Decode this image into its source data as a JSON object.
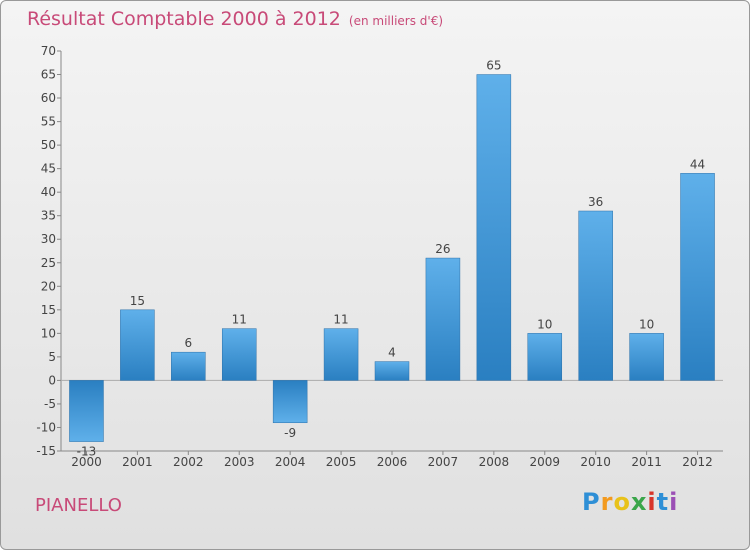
{
  "title": "Résultat Comptable 2000 à 2012",
  "unit_note": "(en milliers d'€)",
  "location": "PIANELLO",
  "brand": {
    "letters": [
      "P",
      "r",
      "o",
      "x",
      "i",
      "t",
      "i"
    ],
    "colors": [
      "#2e8fd6",
      "#f39a1e",
      "#e8c21a",
      "#3aa64a",
      "#d8352a",
      "#2e8fd6",
      "#9b4fb5"
    ]
  },
  "colors": {
    "bar_light": "#5fb0ea",
    "bar_dark": "#2a7fc1",
    "title": "#c84a78"
  },
  "chart_data": {
    "type": "bar",
    "title": "Résultat Comptable 2000 à 2012",
    "xlabel": "",
    "ylabel": "en milliers d'€",
    "categories": [
      "2000",
      "2001",
      "2002",
      "2003",
      "2004",
      "2005",
      "2006",
      "2007",
      "2008",
      "2009",
      "2010",
      "2011",
      "2012"
    ],
    "values": [
      -13,
      15,
      6,
      11,
      -9,
      11,
      4,
      26,
      65,
      10,
      36,
      10,
      44
    ],
    "ylim": [
      -15,
      70
    ],
    "yticks": [
      -15,
      -10,
      -5,
      0,
      5,
      10,
      15,
      20,
      25,
      30,
      35,
      40,
      45,
      50,
      55,
      60,
      65,
      70
    ],
    "grid": false
  }
}
